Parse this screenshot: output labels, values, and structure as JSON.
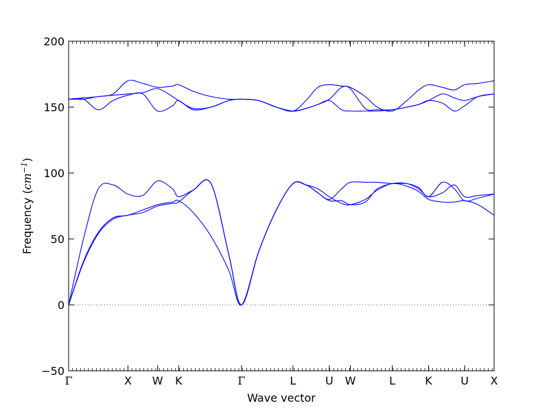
{
  "chart_data": {
    "type": "line",
    "title": "",
    "xlabel": "Wave vector",
    "ylabel_prefix": "Frequency (",
    "ylabel_unit": "cm",
    "ylabel_exponent": "−1",
    "ylabel_suffix": ")",
    "ylim": [
      -50,
      200
    ],
    "yticks": [
      -50,
      0,
      50,
      100,
      150,
      200
    ],
    "ytick_labels": [
      "−50",
      "0",
      "50",
      "100",
      "150",
      "200"
    ],
    "xlim": [
      0,
      7.17
    ],
    "high_symmetry_points": [
      {
        "label": "Γ",
        "x": 0.0
      },
      {
        "label": "X",
        "x": 1.0
      },
      {
        "label": "W",
        "x": 1.5
      },
      {
        "label": "K",
        "x": 1.854
      },
      {
        "label": "Γ",
        "x": 2.914
      },
      {
        "label": "L",
        "x": 3.78
      },
      {
        "label": "U",
        "x": 4.393
      },
      {
        "label": "W",
        "x": 4.747
      },
      {
        "label": "L",
        "x": 5.454
      },
      {
        "label": "K",
        "x": 6.066
      },
      {
        "label": "U",
        "x": 6.674
      },
      {
        "label": "X",
        "x": 7.17
      }
    ],
    "zero_line": true,
    "line_color": "#0000ff",
    "series": [
      {
        "x": [
          0,
          0.25,
          0.5,
          0.75,
          1.0,
          1.25,
          1.5,
          1.75,
          1.854,
          2.1,
          2.4,
          2.7,
          2.914,
          3.2,
          3.5,
          3.78,
          4.0,
          4.2,
          4.393,
          4.6,
          4.747,
          5.0,
          5.2,
          5.454,
          5.7,
          5.9,
          6.066,
          6.3,
          6.5,
          6.674,
          6.9,
          7.17
        ],
        "y": [
          0,
          33,
          55,
          66,
          68,
          72,
          76,
          78,
          79,
          70,
          52,
          26,
          0,
          40,
          72,
          92,
          91,
          88,
          82,
          77,
          76,
          80,
          87,
          92,
          90,
          86,
          80,
          78,
          78,
          79,
          76,
          68
        ]
      },
      {
        "x": [
          0,
          0.25,
          0.5,
          0.75,
          1.0,
          1.25,
          1.5,
          1.75,
          1.854,
          2.1,
          2.4,
          2.7,
          2.914,
          3.2,
          3.5,
          3.78,
          4.0,
          4.2,
          4.393,
          4.6,
          4.747,
          5.0,
          5.2,
          5.454,
          5.7,
          5.9,
          6.066,
          6.3,
          6.5,
          6.674,
          6.9,
          7.17
        ],
        "y": [
          0,
          32,
          54,
          65,
          68,
          70,
          75,
          77,
          78,
          87,
          92,
          38,
          0,
          40,
          72,
          92,
          91,
          85,
          79,
          79,
          76,
          78,
          88,
          92,
          92,
          88,
          82,
          85,
          91,
          82,
          83,
          84
        ]
      },
      {
        "x": [
          0,
          0.25,
          0.5,
          0.75,
          1.0,
          1.25,
          1.5,
          1.75,
          1.854,
          2.1,
          2.4,
          2.7,
          2.914,
          3.2,
          3.5,
          3.78,
          4.0,
          4.2,
          4.393,
          4.6,
          4.747,
          5.0,
          5.2,
          5.454,
          5.7,
          5.9,
          6.066,
          6.3,
          6.5,
          6.674,
          6.9,
          7.17
        ],
        "y": [
          0,
          50,
          88,
          91,
          84,
          83,
          94,
          88,
          82,
          87,
          92,
          38,
          0,
          40,
          72,
          92,
          91,
          85,
          80,
          88,
          93,
          93,
          93,
          92,
          92,
          89,
          82,
          93,
          88,
          79,
          81,
          84
        ]
      },
      {
        "x": [
          0,
          0.25,
          0.5,
          0.75,
          1.0,
          1.25,
          1.5,
          1.75,
          1.854,
          2.1,
          2.4,
          2.7,
          2.914,
          3.2,
          3.5,
          3.78,
          4.0,
          4.2,
          4.393,
          4.6,
          4.747,
          5.0,
          5.2,
          5.454,
          5.7,
          5.9,
          6.066,
          6.3,
          6.5,
          6.674,
          6.9,
          7.17
        ],
        "y": [
          156,
          156,
          148,
          155,
          159,
          160,
          147,
          151,
          155,
          148,
          150,
          155,
          156,
          155,
          150,
          147,
          149,
          152,
          156,
          165,
          164,
          149,
          148,
          148,
          150,
          152,
          155,
          160,
          157,
          155,
          158,
          160
        ]
      },
      {
        "x": [
          0,
          0.25,
          0.5,
          0.75,
          1.0,
          1.25,
          1.5,
          1.75,
          1.854,
          2.1,
          2.4,
          2.7,
          2.914,
          3.2,
          3.5,
          3.78,
          4.0,
          4.2,
          4.393,
          4.6,
          4.747,
          5.0,
          5.2,
          5.454,
          5.7,
          5.9,
          6.066,
          6.3,
          6.5,
          6.674,
          6.9,
          7.17
        ],
        "y": [
          156,
          156,
          158,
          159,
          160,
          161,
          164,
          158,
          155,
          149,
          150,
          155,
          156,
          155,
          150,
          147,
          149,
          152,
          155,
          148,
          147,
          147,
          147,
          148,
          150,
          152,
          155,
          153,
          147,
          151,
          158,
          160
        ]
      },
      {
        "x": [
          0,
          0.25,
          0.5,
          0.75,
          1.0,
          1.25,
          1.5,
          1.75,
          1.854,
          2.1,
          2.4,
          2.7,
          2.914,
          3.2,
          3.5,
          3.78,
          4.0,
          4.2,
          4.393,
          4.6,
          4.747,
          5.0,
          5.2,
          5.454,
          5.7,
          5.9,
          6.066,
          6.3,
          6.5,
          6.674,
          6.9,
          7.17
        ],
        "y": [
          156,
          157,
          158,
          160,
          170,
          168,
          165,
          166,
          167,
          162,
          158,
          156,
          156,
          155,
          150,
          147,
          155,
          165,
          167,
          166,
          165,
          158,
          150,
          147,
          155,
          163,
          167,
          165,
          163,
          167,
          168,
          170
        ]
      }
    ]
  }
}
